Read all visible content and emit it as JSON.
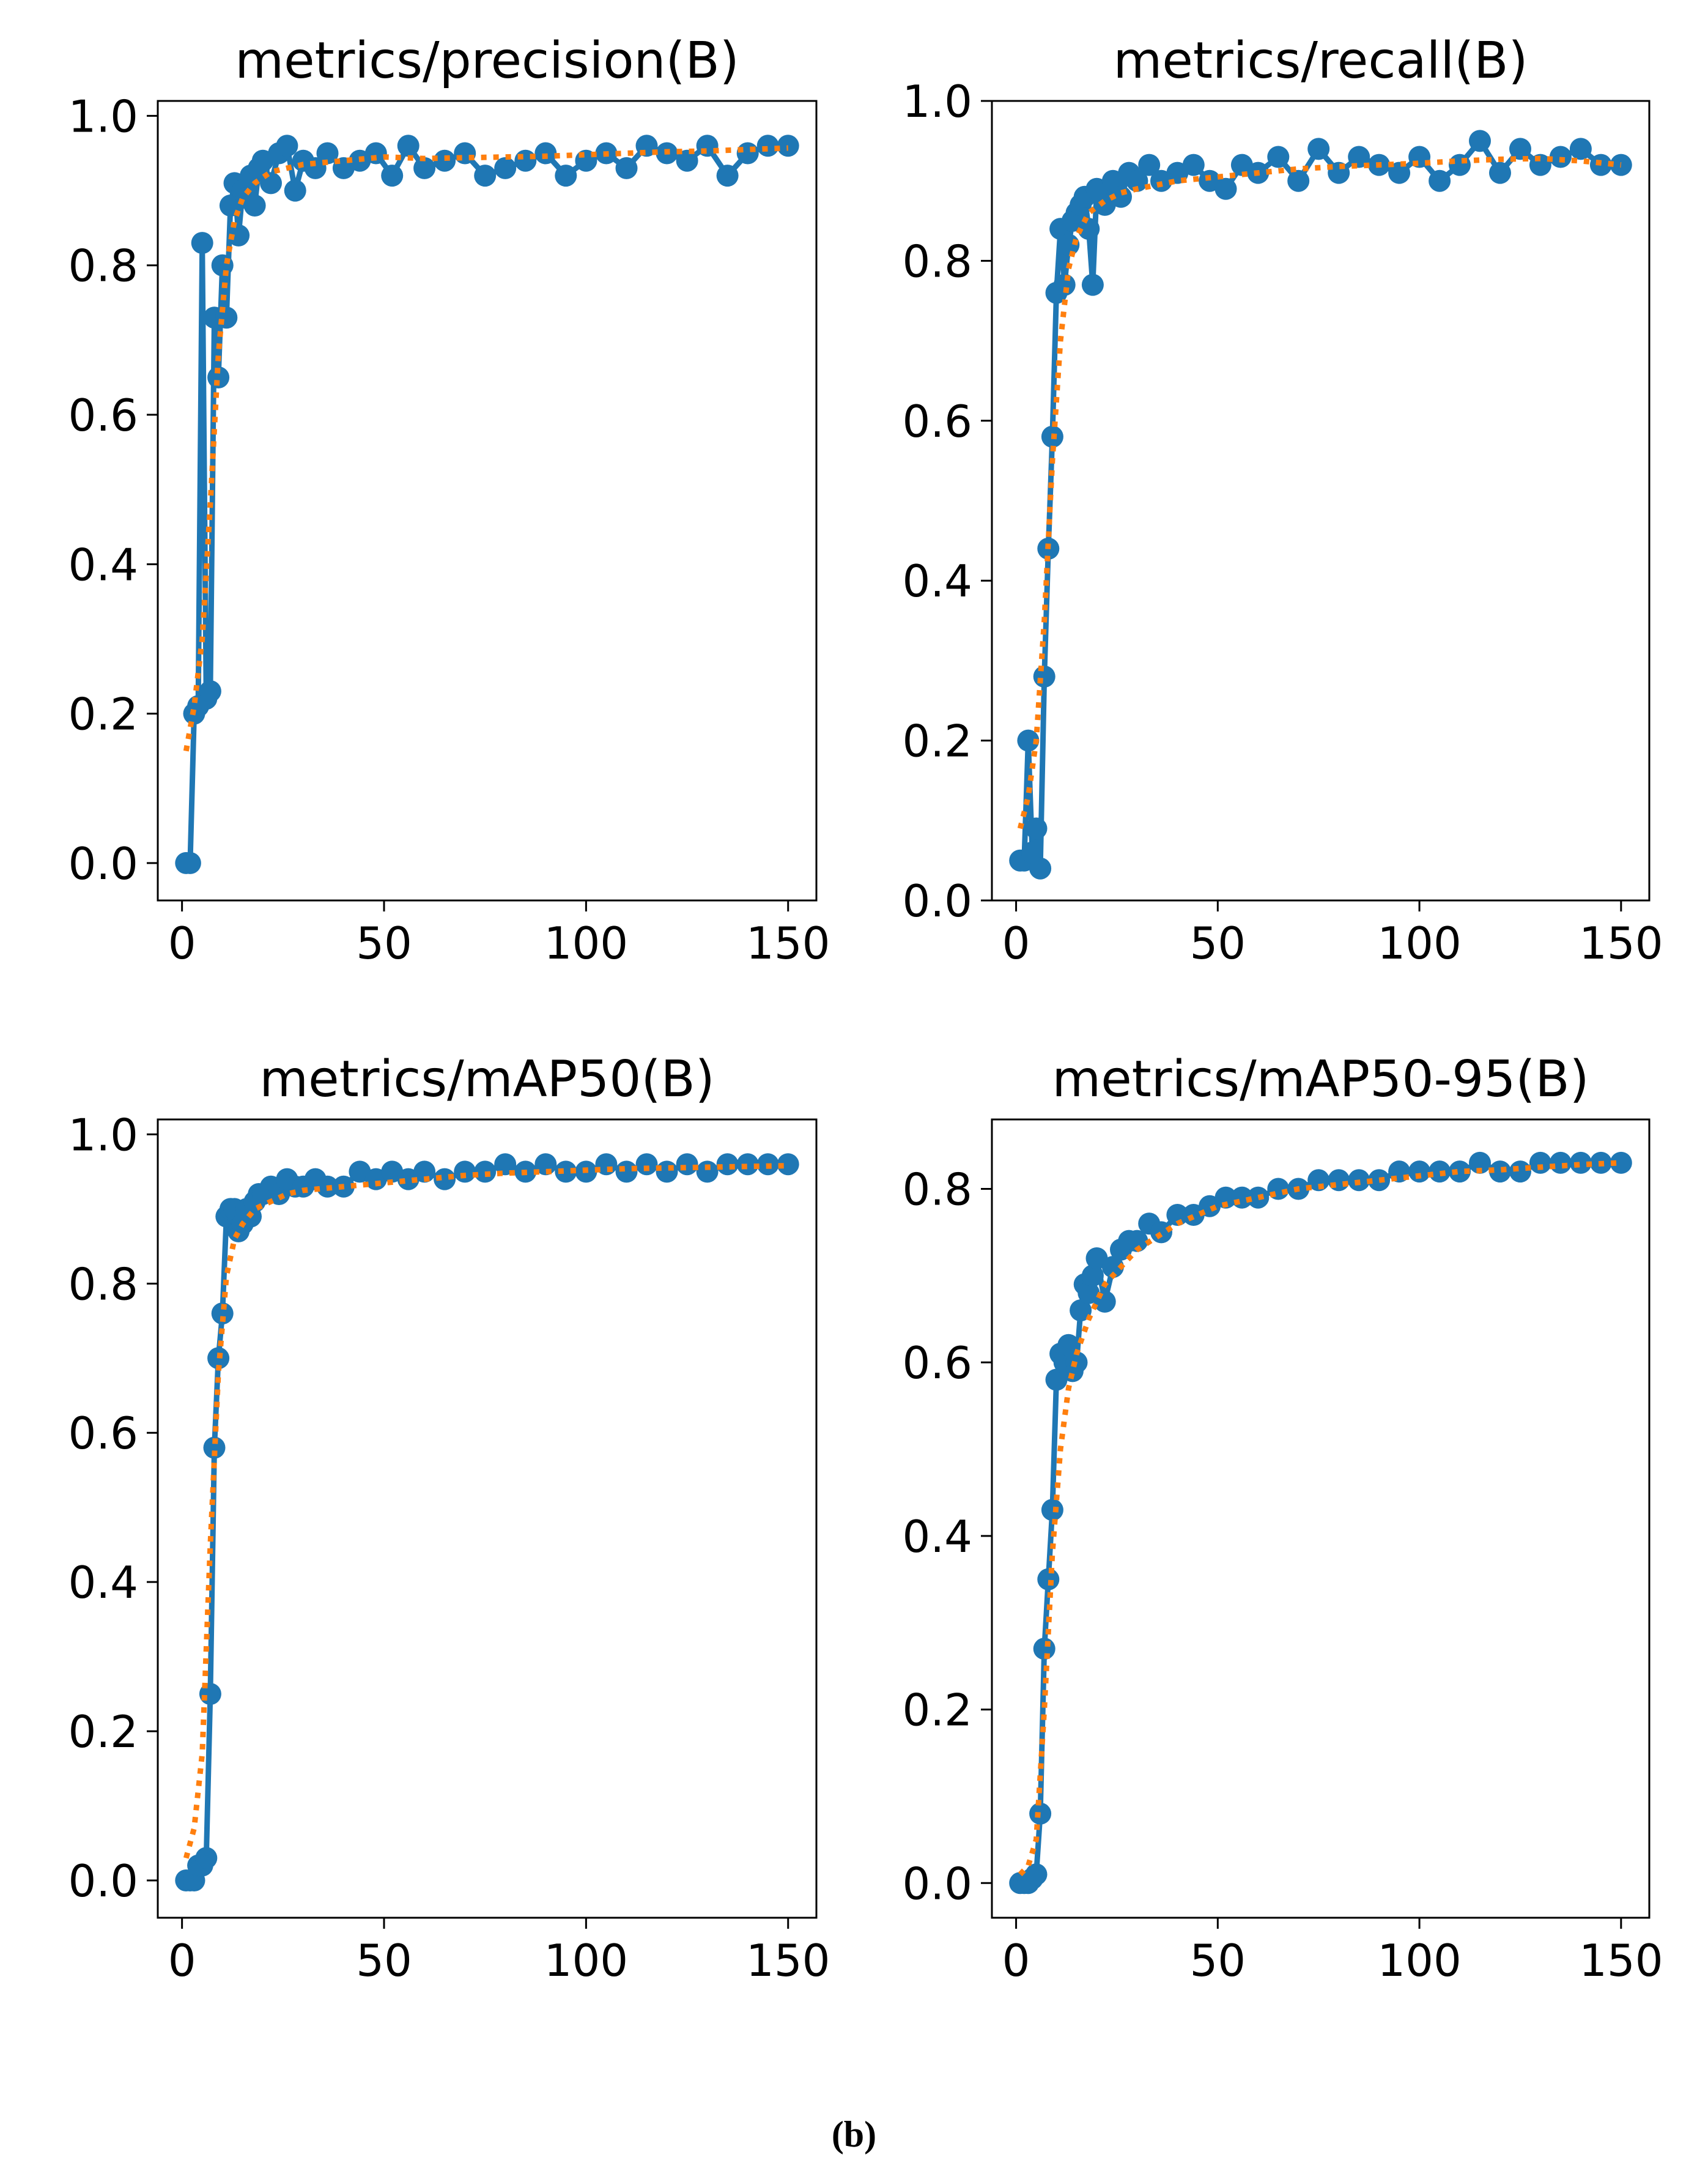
{
  "figure_label": "(b)",
  "colors": {
    "series": "#1f77b4",
    "smooth": "#ff7f0e",
    "axis": "#000000",
    "background": "#ffffff"
  },
  "chart_data": [
    {
      "type": "line",
      "title": "metrics/precision(B)",
      "xlabel": "",
      "ylabel": "",
      "xlim": [
        -6,
        157
      ],
      "ylim": [
        -0.05,
        1.02
      ],
      "xticks": [
        0,
        50,
        100,
        150
      ],
      "yticks": [
        0.0,
        0.2,
        0.4,
        0.6,
        0.8,
        1.0
      ],
      "xtick_labels": [
        "0",
        "50",
        "100",
        "150"
      ],
      "ytick_labels": [
        "0.0",
        "0.2",
        "0.4",
        "0.6",
        "0.8",
        "1.0"
      ],
      "grid": false,
      "series": [
        {
          "name": "results",
          "style": "line-markers",
          "x": [
            1,
            2,
            3,
            4,
            5,
            6,
            7,
            8,
            9,
            10,
            11,
            12,
            13,
            14,
            15,
            16,
            17,
            18,
            19,
            20,
            22,
            24,
            26,
            28,
            30,
            33,
            36,
            40,
            44,
            48,
            52,
            56,
            60,
            65,
            70,
            75,
            80,
            85,
            90,
            95,
            100,
            105,
            110,
            115,
            120,
            125,
            130,
            135,
            140,
            145,
            150
          ],
          "y": [
            0.0,
            0.0,
            0.2,
            0.21,
            0.83,
            0.22,
            0.23,
            0.73,
            0.65,
            0.8,
            0.73,
            0.88,
            0.91,
            0.84,
            0.9,
            0.89,
            0.92,
            0.88,
            0.93,
            0.94,
            0.91,
            0.95,
            0.96,
            0.9,
            0.94,
            0.93,
            0.95,
            0.93,
            0.94,
            0.95,
            0.92,
            0.96,
            0.93,
            0.94,
            0.95,
            0.92,
            0.93,
            0.94,
            0.95,
            0.92,
            0.94,
            0.95,
            0.93,
            0.96,
            0.95,
            0.94,
            0.96,
            0.92,
            0.95,
            0.96,
            0.96
          ]
        },
        {
          "name": "smooth",
          "style": "dotted",
          "x": [
            1,
            3,
            5,
            7,
            9,
            11,
            13,
            15,
            18,
            22,
            26,
            30,
            40,
            50,
            60,
            70,
            80,
            90,
            100,
            110,
            120,
            130,
            140,
            150
          ],
          "y": [
            0.15,
            0.21,
            0.3,
            0.48,
            0.68,
            0.8,
            0.86,
            0.89,
            0.91,
            0.925,
            0.93,
            0.935,
            0.94,
            0.945,
            0.943,
            0.944,
            0.945,
            0.946,
            0.948,
            0.95,
            0.952,
            0.953,
            0.955,
            0.957
          ]
        }
      ]
    },
    {
      "type": "line",
      "title": "metrics/recall(B)",
      "xlabel": "",
      "ylabel": "",
      "xlim": [
        -6,
        157
      ],
      "ylim": [
        0.0,
        1.0
      ],
      "xticks": [
        0,
        50,
        100,
        150
      ],
      "yticks": [
        0.0,
        0.2,
        0.4,
        0.6,
        0.8,
        1.0
      ],
      "xtick_labels": [
        "0",
        "50",
        "100",
        "150"
      ],
      "ytick_labels": [
        "0.0",
        "0.2",
        "0.4",
        "0.6",
        "0.8",
        "1.0"
      ],
      "grid": false,
      "series": [
        {
          "name": "results",
          "style": "line-markers",
          "x": [
            1,
            2,
            3,
            4,
            5,
            6,
            7,
            8,
            9,
            10,
            11,
            12,
            13,
            14,
            15,
            16,
            17,
            18,
            19,
            20,
            22,
            24,
            26,
            28,
            30,
            33,
            36,
            40,
            44,
            48,
            52,
            56,
            60,
            65,
            70,
            75,
            80,
            85,
            90,
            95,
            100,
            105,
            110,
            115,
            120,
            125,
            130,
            135,
            140,
            145,
            150
          ],
          "y": [
            0.05,
            0.05,
            0.2,
            0.06,
            0.09,
            0.04,
            0.28,
            0.44,
            0.58,
            0.76,
            0.84,
            0.77,
            0.82,
            0.85,
            0.86,
            0.87,
            0.88,
            0.84,
            0.77,
            0.89,
            0.87,
            0.9,
            0.88,
            0.91,
            0.9,
            0.92,
            0.9,
            0.91,
            0.92,
            0.9,
            0.89,
            0.92,
            0.91,
            0.93,
            0.9,
            0.94,
            0.91,
            0.93,
            0.92,
            0.91,
            0.93,
            0.9,
            0.92,
            0.95,
            0.91,
            0.94,
            0.92,
            0.93,
            0.94,
            0.92,
            0.92
          ]
        },
        {
          "name": "smooth",
          "style": "dotted",
          "x": [
            1,
            3,
            5,
            7,
            9,
            11,
            13,
            15,
            18,
            22,
            26,
            30,
            40,
            50,
            60,
            70,
            80,
            90,
            100,
            110,
            120,
            130,
            140,
            150
          ],
          "y": [
            0.09,
            0.13,
            0.2,
            0.35,
            0.55,
            0.7,
            0.79,
            0.83,
            0.86,
            0.875,
            0.885,
            0.89,
            0.9,
            0.905,
            0.91,
            0.915,
            0.918,
            0.92,
            0.922,
            0.925,
            0.927,
            0.928,
            0.925,
            0.92
          ]
        }
      ]
    },
    {
      "type": "line",
      "title": "metrics/mAP50(B)",
      "xlabel": "",
      "ylabel": "",
      "xlim": [
        -6,
        157
      ],
      "ylim": [
        -0.05,
        1.02
      ],
      "xticks": [
        0,
        50,
        100,
        150
      ],
      "yticks": [
        0.0,
        0.2,
        0.4,
        0.6,
        0.8,
        1.0
      ],
      "xtick_labels": [
        "0",
        "50",
        "100",
        "150"
      ],
      "ytick_labels": [
        "0.0",
        "0.2",
        "0.4",
        "0.6",
        "0.8",
        "1.0"
      ],
      "grid": false,
      "series": [
        {
          "name": "results",
          "style": "line-markers",
          "x": [
            1,
            2,
            3,
            4,
            5,
            6,
            7,
            8,
            9,
            10,
            11,
            12,
            13,
            14,
            15,
            16,
            17,
            18,
            19,
            20,
            22,
            24,
            26,
            28,
            30,
            33,
            36,
            40,
            44,
            48,
            52,
            56,
            60,
            65,
            70,
            75,
            80,
            85,
            90,
            95,
            100,
            105,
            110,
            115,
            120,
            125,
            130,
            135,
            140,
            145,
            150
          ],
          "y": [
            0.0,
            0.0,
            0.0,
            0.02,
            0.02,
            0.03,
            0.25,
            0.58,
            0.7,
            0.76,
            0.89,
            0.9,
            0.9,
            0.87,
            0.88,
            0.9,
            0.89,
            0.91,
            0.92,
            0.92,
            0.93,
            0.92,
            0.94,
            0.93,
            0.93,
            0.94,
            0.93,
            0.93,
            0.95,
            0.94,
            0.95,
            0.94,
            0.95,
            0.94,
            0.95,
            0.95,
            0.96,
            0.95,
            0.96,
            0.95,
            0.95,
            0.96,
            0.95,
            0.96,
            0.95,
            0.96,
            0.95,
            0.96,
            0.96,
            0.96,
            0.96
          ]
        },
        {
          "name": "smooth",
          "style": "dotted",
          "x": [
            1,
            3,
            5,
            7,
            9,
            11,
            13,
            15,
            18,
            22,
            26,
            30,
            40,
            50,
            60,
            70,
            80,
            90,
            100,
            110,
            120,
            130,
            140,
            150
          ],
          "y": [
            0.03,
            0.07,
            0.17,
            0.45,
            0.68,
            0.81,
            0.86,
            0.88,
            0.9,
            0.91,
            0.92,
            0.925,
            0.93,
            0.935,
            0.94,
            0.945,
            0.948,
            0.95,
            0.952,
            0.954,
            0.955,
            0.956,
            0.957,
            0.958
          ]
        }
      ]
    },
    {
      "type": "line",
      "title": "metrics/mAP50-95(B)",
      "xlabel": "",
      "ylabel": "",
      "xlim": [
        -6,
        157
      ],
      "ylim": [
        -0.04,
        0.88
      ],
      "xticks": [
        0,
        50,
        100,
        150
      ],
      "yticks": [
        0.0,
        0.2,
        0.4,
        0.6,
        0.8
      ],
      "xtick_labels": [
        "0",
        "50",
        "100",
        "150"
      ],
      "ytick_labels": [
        "0.0",
        "0.2",
        "0.4",
        "0.6",
        "0.8"
      ],
      "grid": false,
      "series": [
        {
          "name": "results",
          "style": "line-markers",
          "x": [
            1,
            2,
            3,
            4,
            5,
            6,
            7,
            8,
            9,
            10,
            11,
            12,
            13,
            14,
            15,
            16,
            17,
            18,
            19,
            20,
            22,
            24,
            26,
            28,
            30,
            33,
            36,
            40,
            44,
            48,
            52,
            56,
            60,
            65,
            70,
            75,
            80,
            85,
            90,
            95,
            100,
            105,
            110,
            115,
            120,
            125,
            130,
            135,
            140,
            145,
            150
          ],
          "y": [
            0.0,
            0.0,
            0.0,
            0.005,
            0.01,
            0.08,
            0.27,
            0.35,
            0.43,
            0.58,
            0.61,
            0.6,
            0.62,
            0.59,
            0.6,
            0.66,
            0.69,
            0.68,
            0.7,
            0.72,
            0.67,
            0.71,
            0.73,
            0.74,
            0.74,
            0.76,
            0.75,
            0.77,
            0.77,
            0.78,
            0.79,
            0.79,
            0.79,
            0.8,
            0.8,
            0.81,
            0.81,
            0.81,
            0.81,
            0.82,
            0.82,
            0.82,
            0.82,
            0.83,
            0.82,
            0.82,
            0.83,
            0.83,
            0.83,
            0.83,
            0.83
          ]
        },
        {
          "name": "smooth",
          "style": "dotted",
          "x": [
            1,
            3,
            5,
            7,
            9,
            11,
            13,
            15,
            18,
            22,
            26,
            30,
            40,
            50,
            60,
            70,
            80,
            90,
            100,
            110,
            120,
            130,
            140,
            150
          ],
          "y": [
            0.01,
            0.02,
            0.05,
            0.2,
            0.38,
            0.5,
            0.57,
            0.61,
            0.65,
            0.69,
            0.71,
            0.73,
            0.76,
            0.78,
            0.79,
            0.8,
            0.805,
            0.81,
            0.815,
            0.82,
            0.822,
            0.825,
            0.828,
            0.83
          ]
        }
      ]
    }
  ]
}
